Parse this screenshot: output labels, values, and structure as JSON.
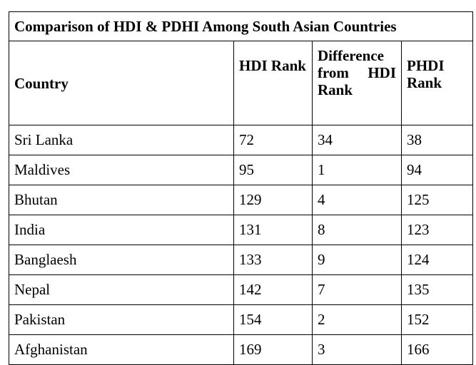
{
  "table": {
    "title": "Comparison of HDI & PDHI Among South Asian Countries",
    "headers": {
      "country": "Country",
      "hdi_rank": "HDI Rank",
      "difference": "Difference from HDI Rank",
      "phdi_rank": "PHDI Rank"
    },
    "rows": [
      {
        "country": "Sri Lanka",
        "hdi": "72",
        "diff": "34",
        "phdi": "38"
      },
      {
        "country": "Maldives",
        "hdi": "95",
        "diff": "1",
        "phdi": "94"
      },
      {
        "country": "Bhutan",
        "hdi": "129",
        "diff": "4",
        "phdi": "125"
      },
      {
        "country": "India",
        "hdi": "131",
        "diff": "8",
        "phdi": "123"
      },
      {
        "country": "Banglaesh",
        "hdi": "133",
        "diff": "9",
        "phdi": "124"
      },
      {
        "country": "Nepal",
        "hdi": "142",
        "diff": "7",
        "phdi": "135"
      },
      {
        "country": "Pakistan",
        "hdi": "154",
        "diff": "2",
        "phdi": "152"
      },
      {
        "country": "Afghanistan",
        "hdi": "169",
        "diff": "3",
        "phdi": "166"
      }
    ]
  }
}
